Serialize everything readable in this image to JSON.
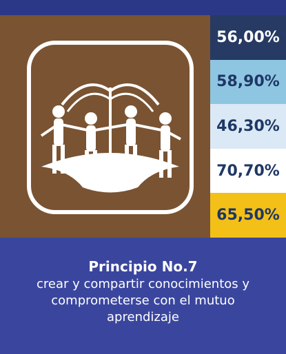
{
  "stats": [
    "56,00%",
    "58,90%",
    "46,30%",
    "70,70%",
    "65,50%"
  ],
  "caption": {
    "title": "Principio No.7",
    "text": "crear y compartir conocimientos y comprometerse con el mutuo aprendizaje"
  }
}
